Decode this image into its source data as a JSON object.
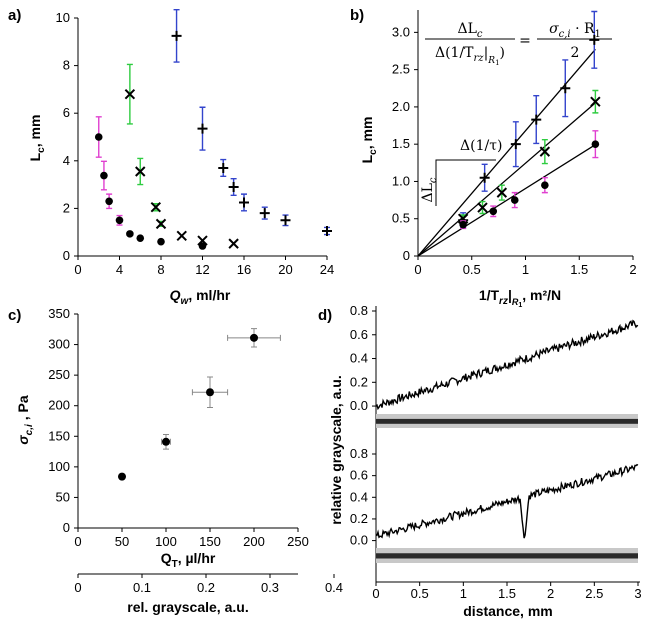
{
  "figure": {
    "panels": {
      "a": "a)",
      "b": "b)",
      "c": "c)",
      "d": "d)"
    },
    "colors": {
      "magenta": "#e040d0",
      "green": "#2ecc40",
      "blue": "#3344cc",
      "black": "#000000"
    }
  },
  "chart_data": [
    {
      "panel": "a",
      "type": "scatter",
      "xlabel_symbol": "Q",
      "xlabel_sub": "w",
      "xlabel_rest": ", ml/hr",
      "ylabel_symbol": "L",
      "ylabel_sub": "c",
      "ylabel_rest": ", mm",
      "xlim": [
        0,
        24
      ],
      "ylim": [
        0,
        10
      ],
      "xticks": [
        0,
        4,
        8,
        12,
        16,
        20,
        24
      ],
      "yticks": [
        0,
        2,
        4,
        6,
        8,
        10
      ],
      "series": [
        {
          "name": "dots",
          "marker": "dot",
          "color": "#e040d0",
          "x": [
            2.0,
            2.5,
            3.0,
            4.0,
            5.0,
            6.0,
            8.0,
            12.0
          ],
          "y": [
            5.0,
            3.38,
            2.3,
            1.5,
            0.93,
            0.75,
            0.6,
            0.42
          ],
          "err": [
            0.85,
            0.6,
            0.3,
            0.2,
            0,
            0,
            0,
            0
          ]
        },
        {
          "name": "crosses",
          "marker": "x",
          "color": "#2ecc40",
          "x": [
            5.0,
            6.0,
            7.5,
            8.0,
            10.0,
            12.0,
            15.0
          ],
          "y": [
            6.8,
            3.55,
            2.05,
            1.35,
            0.85,
            0.65,
            0.52
          ],
          "err": [
            1.25,
            0.55,
            0.15,
            0.1,
            0,
            0,
            0
          ]
        },
        {
          "name": "plus",
          "marker": "+",
          "color": "#3344cc",
          "x": [
            9.5,
            12.0,
            14.0,
            15.0,
            16.0,
            18.0,
            20.0,
            24.0
          ],
          "y": [
            9.25,
            5.35,
            3.7,
            2.9,
            2.25,
            1.8,
            1.5,
            1.05
          ],
          "err": [
            1.1,
            0.9,
            0.35,
            0.35,
            0.35,
            0.25,
            0.22,
            0.15
          ]
        }
      ]
    },
    {
      "panel": "b",
      "type": "scatter",
      "xlabel_main": "1/T",
      "xlabel_sub": "rz",
      "xlabel_sub2": "R",
      "xlabel_sub3": "1",
      "xlabel_rest": ", m²/N",
      "ylabel_symbol": "L",
      "ylabel_sub": "c",
      "ylabel_rest": ", mm",
      "xlim": [
        0,
        2
      ],
      "ylim": [
        0,
        3.3
      ],
      "xticks": [
        0,
        0.5,
        1,
        1.5,
        2
      ],
      "yticks": [
        0,
        0.5,
        1,
        1.5,
        2,
        2.5,
        3
      ],
      "xtick_labels": [
        "0",
        "0.5",
        "1",
        "1.5",
        "2"
      ],
      "ytick_labels": [
        "0",
        "0.5",
        "1.0",
        "1.5",
        "2.0",
        "2.5",
        "3.0"
      ],
      "equation": {
        "lhs_num": "ΔL",
        "lhs_num_sub": "c",
        "lhs_den_a": "Δ(1/T",
        "lhs_den_sub": "rz",
        "lhs_den_bar": "|",
        "lhs_den_sub2": "R",
        "lhs_den_sub3": "1",
        "lhs_den_b": ")",
        "eq": "=",
        "rhs_num_a": "σ",
        "rhs_num_sub": "c,i",
        "rhs_num_b": " · R",
        "rhs_num_sub2": "1",
        "rhs_den": "2"
      },
      "annotation_dtau": "Δ(1/τ)",
      "annotation_dL": "ΔL",
      "annotation_dL_sub": "c",
      "fit_lines": [
        {
          "slope": 1.68,
          "x_end": 1.65,
          "color": "#000000"
        },
        {
          "slope": 1.245,
          "x_end": 1.65,
          "color": "#000000"
        },
        {
          "slope": 0.905,
          "x_end": 1.65,
          "color": "#000000"
        }
      ],
      "series": [
        {
          "name": "plus",
          "marker": "+",
          "color": "#3344cc",
          "x": [
            0.42,
            0.62,
            0.91,
            1.1,
            1.37,
            1.64
          ],
          "y": [
            0.48,
            1.05,
            1.5,
            1.83,
            2.25,
            2.9
          ],
          "err": [
            0.1,
            0.18,
            0.3,
            0.32,
            0.38,
            0.38
          ]
        },
        {
          "name": "crosses",
          "marker": "x",
          "color": "#2ecc40",
          "x": [
            0.42,
            0.6,
            0.78,
            1.18,
            1.65
          ],
          "y": [
            0.5,
            0.65,
            0.85,
            1.4,
            2.07
          ],
          "err": [
            0.05,
            0.08,
            0.1,
            0.16,
            0.15
          ]
        },
        {
          "name": "dots",
          "marker": "dot",
          "color": "#e040d0",
          "x": [
            0.42,
            0.7,
            0.9,
            1.18,
            1.65
          ],
          "y": [
            0.42,
            0.6,
            0.75,
            0.95,
            1.5
          ],
          "err": [
            0.05,
            0.07,
            0.1,
            0.1,
            0.18
          ]
        }
      ]
    },
    {
      "panel": "c",
      "type": "scatter",
      "xlabel_main": "Q",
      "xlabel_sub": "T",
      "xlabel_rest": ", µl/hr",
      "x2label": "rel. grayscale, a.u.",
      "ylabel_symbol": "σ",
      "ylabel_sub": "c,i",
      "ylabel_rest": " , Pa",
      "xlim": [
        0,
        250
      ],
      "ylim": [
        0,
        350
      ],
      "xticks": [
        0,
        50,
        100,
        150,
        200,
        250
      ],
      "yticks": [
        0,
        50,
        100,
        150,
        200,
        250,
        300,
        350
      ],
      "x2lim": [
        0,
        0.4
      ],
      "x2ticks": [
        0,
        0.1,
        0.2,
        0.3,
        0.4
      ],
      "x2tick_labels": [
        "0",
        "0.1",
        "0.2",
        "0.3",
        "0.4"
      ],
      "series": [
        {
          "name": "points",
          "marker": "dot",
          "color": "#000000",
          "x": [
            50,
            100,
            150,
            200
          ],
          "y": [
            84,
            141,
            222,
            311
          ],
          "xerr": [
            0,
            5,
            20,
            30
          ],
          "yerr": [
            3,
            12,
            25,
            15
          ]
        }
      ]
    },
    {
      "panel": "d",
      "type": "line",
      "ylabel": "relative grayscale, a.u.",
      "xlabel": "distance, mm",
      "xlim": [
        0,
        3
      ],
      "xticks": [
        0,
        0.5,
        1,
        1.5,
        2,
        2.5,
        3
      ],
      "xtick_labels": [
        "0",
        "0.5",
        "1",
        "1.5",
        "2",
        "2.5",
        "3"
      ],
      "subplots": [
        {
          "ylim": [
            -0.05,
            0.8
          ],
          "yticks": [
            0.0,
            0.2,
            0.4,
            0.6,
            0.8
          ],
          "ytick_labels": [
            "0.0",
            "0.2",
            "0.4",
            "0.6",
            "0.8"
          ],
          "curve": {
            "start": 0.0,
            "end": 0.7,
            "noise": 0.035
          }
        },
        {
          "ylim": [
            -0.05,
            0.8
          ],
          "yticks": [
            0.0,
            0.2,
            0.4,
            0.6,
            0.8
          ],
          "ytick_labels": [
            "0.0",
            "0.2",
            "0.4",
            "0.6",
            "0.8"
          ],
          "curve": {
            "start": 0.04,
            "end": 0.68,
            "noise": 0.035,
            "dip_x": 1.7,
            "dip_y": -0.01
          }
        }
      ]
    }
  ]
}
